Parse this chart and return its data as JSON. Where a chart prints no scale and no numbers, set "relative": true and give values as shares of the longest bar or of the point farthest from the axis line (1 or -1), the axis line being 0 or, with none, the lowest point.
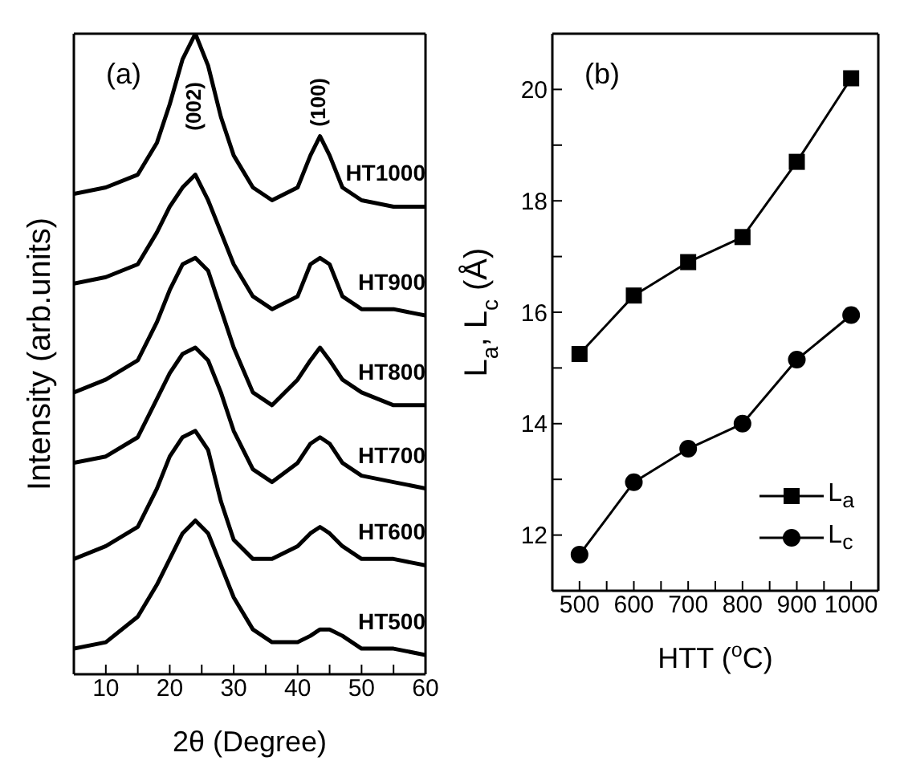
{
  "chart_data": [
    {
      "type": "line",
      "relative": true,
      "xlabel": "2θ (Degree)",
      "ylabel": "Intensity (arb.units)",
      "xlim": [
        5,
        60
      ],
      "xticks": [
        {
          "value": 5,
          "label": null
        },
        10,
        {
          "value": 15,
          "label": null
        },
        20,
        {
          "value": 25,
          "label": null
        },
        30,
        {
          "value": 35,
          "label": null
        },
        40,
        {
          "value": 45,
          "label": null
        },
        50,
        {
          "value": 55,
          "label": null
        },
        60
      ],
      "grid": false,
      "legend": false,
      "marker": "none",
      "x": [
        5,
        10,
        15,
        18,
        20,
        22,
        24,
        26,
        28,
        30,
        33,
        36,
        40,
        42,
        43.5,
        45,
        47,
        50,
        55,
        60
      ],
      "series": [
        {
          "name": "HT1000",
          "color": "#000000",
          "values": [
            0.75,
            0.76,
            0.78,
            0.83,
            0.89,
            0.96,
            1.0,
            0.95,
            0.87,
            0.81,
            0.76,
            0.74,
            0.76,
            0.81,
            0.84,
            0.81,
            0.76,
            0.74,
            0.73,
            0.73
          ]
        },
        {
          "name": "HT900",
          "color": "#000000",
          "values": [
            0.61,
            0.62,
            0.64,
            0.69,
            0.73,
            0.76,
            0.78,
            0.74,
            0.69,
            0.64,
            0.59,
            0.57,
            0.59,
            0.64,
            0.65,
            0.64,
            0.59,
            0.57,
            0.57,
            0.56
          ]
        },
        {
          "name": "HT800",
          "color": "#000000",
          "values": [
            0.44,
            0.46,
            0.49,
            0.55,
            0.6,
            0.64,
            0.65,
            0.63,
            0.57,
            0.51,
            0.44,
            0.42,
            0.46,
            0.49,
            0.51,
            0.49,
            0.46,
            0.44,
            0.42,
            0.42
          ]
        },
        {
          "name": "HT700",
          "color": "#000000",
          "values": [
            0.33,
            0.34,
            0.37,
            0.43,
            0.47,
            0.5,
            0.51,
            0.49,
            0.44,
            0.38,
            0.32,
            0.3,
            0.33,
            0.36,
            0.37,
            0.36,
            0.33,
            0.31,
            0.3,
            0.29
          ]
        },
        {
          "name": "HT600",
          "color": "#000000",
          "values": [
            0.18,
            0.2,
            0.23,
            0.29,
            0.34,
            0.37,
            0.38,
            0.35,
            0.27,
            0.21,
            0.18,
            0.18,
            0.2,
            0.22,
            0.23,
            0.22,
            0.2,
            0.18,
            0.18,
            0.17
          ]
        },
        {
          "name": "HT500",
          "color": "#000000",
          "values": [
            0.04,
            0.05,
            0.09,
            0.14,
            0.18,
            0.22,
            0.24,
            0.22,
            0.17,
            0.12,
            0.07,
            0.05,
            0.05,
            0.06,
            0.07,
            0.07,
            0.06,
            0.04,
            0.04,
            0.03
          ]
        }
      ],
      "annotations": [
        "(a)",
        {
          "text": "(002)",
          "x": 24,
          "y": 1.0
        },
        {
          "text": "(100)",
          "x": 43.5,
          "y": 0.84
        }
      ]
    },
    {
      "type": "line",
      "xlabel": "HTT ($^{o}$C)",
      "ylabel": "L$_{a}$, L$_{c}$ (Å)",
      "xlim": [
        450,
        1050
      ],
      "xticks": [
        500,
        {
          "value": 550,
          "label": null
        },
        600,
        {
          "value": 650,
          "label": null
        },
        700,
        {
          "value": 750,
          "label": null
        },
        800,
        {
          "value": 850,
          "label": null
        },
        900,
        {
          "value": 950,
          "label": null
        },
        1000
      ],
      "ylim": [
        11,
        21
      ],
      "yticks": [
        12,
        {
          "value": 13,
          "label": null
        },
        14,
        {
          "value": 15,
          "label": null
        },
        16,
        {
          "value": 17,
          "label": null
        },
        18,
        {
          "value": 19,
          "label": null
        },
        20
      ],
      "grid": false,
      "legend": "bottom right",
      "x": [
        500,
        600,
        700,
        800,
        900,
        1000
      ],
      "series": [
        {
          "name": "L$_{a}$",
          "color": "#000000",
          "marker": "square",
          "values": [
            15.25,
            16.3,
            16.9,
            17.35,
            18.7,
            20.2
          ]
        },
        {
          "name": "L$_{c}$",
          "color": "#000000",
          "marker": "circle",
          "values": [
            11.65,
            12.95,
            13.55,
            14.0,
            15.15,
            15.95
          ]
        }
      ],
      "annotations": [
        "(b)"
      ]
    }
  ]
}
